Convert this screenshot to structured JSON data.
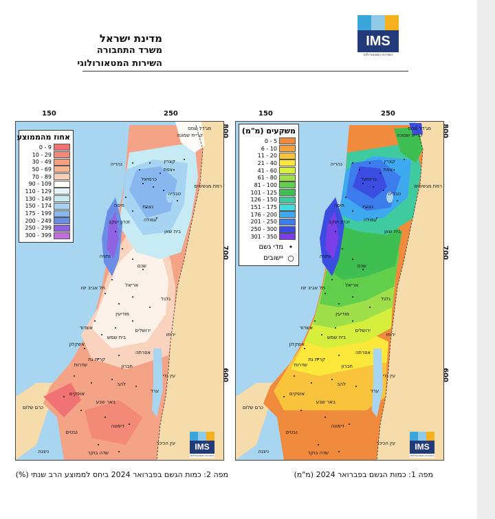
{
  "header": {
    "line1": "מדינת ישראל",
    "line2": "משרד התחבורה",
    "line3": "השירות המטאורולוגי"
  },
  "logo": {
    "text": "IMS",
    "subtitle": "השירות המטאורולוגי",
    "colors": [
      "#3aa6dc",
      "#f6b21e",
      "#233a78"
    ]
  },
  "map_axes": {
    "x_ticks": [
      "150",
      "250"
    ],
    "y_ticks": [
      "800",
      "700",
      "600"
    ]
  },
  "map1": {
    "caption": "מפה 1: כמות הגשם בפברואר 2024 (מ\"מ)",
    "legend_title": "משקעים (מ\"מ)",
    "legend": [
      {
        "label": "0 - 5",
        "color": "#f08a3c"
      },
      {
        "label": "6 - 10",
        "color": "#f5a23f"
      },
      {
        "label": "11 - 20",
        "color": "#f9c33c"
      },
      {
        "label": "21 - 40",
        "color": "#fbe83a"
      },
      {
        "label": "41 - 60",
        "color": "#d6ef3c"
      },
      {
        "label": "61 - 80",
        "color": "#9fe04a"
      },
      {
        "label": "81 - 100",
        "color": "#62cf4c"
      },
      {
        "label": "101 - 125",
        "color": "#3fbf52"
      },
      {
        "label": "126 - 150",
        "color": "#3fcaa0"
      },
      {
        "label": "151 - 175",
        "color": "#44dce0"
      },
      {
        "label": "176 - 200",
        "color": "#3fa9f0"
      },
      {
        "label": "201 - 250",
        "color": "#3d7cec"
      },
      {
        "label": "250 - 300",
        "color": "#3b4ce0"
      },
      {
        "label": "301 - 350",
        "color": "#7a3ee6"
      }
    ],
    "symbols": [
      {
        "icon": "•",
        "label": "מדי גשם"
      },
      {
        "icon": "○",
        "label": "יישובים"
      }
    ]
  },
  "map2": {
    "caption": "מפה 2: כמות הגשם בפברואר 2024  ביחס לממוצע הרב שנתי (%)",
    "legend_title": "אחוז מהממוצע",
    "legend": [
      {
        "label": "0 - 9",
        "color": "#f07272"
      },
      {
        "label": "10 - 29",
        "color": "#f38a78"
      },
      {
        "label": "30 - 49",
        "color": "#f5a07e"
      },
      {
        "label": "50 - 69",
        "color": "#f7b592"
      },
      {
        "label": "70 - 89",
        "color": "#f9cfb6"
      },
      {
        "label": "90 - 109",
        "color": "#fdfbf6"
      },
      {
        "label": "110 - 129",
        "color": "#e3f5f8"
      },
      {
        "label": "130 - 149",
        "color": "#c6ebf4"
      },
      {
        "label": "150 - 174",
        "color": "#a6d4f2"
      },
      {
        "label": "175 - 199",
        "color": "#87b7ee"
      },
      {
        "label": "200 - 249",
        "color": "#6a8ee6"
      },
      {
        "label": "250 - 299",
        "color": "#8f63e2"
      },
      {
        "label": "300 - 399",
        "color": "#c46ce0"
      }
    ]
  },
  "places": [
    "מג'דל שמס",
    "קריית שמונה",
    "נהריה",
    "קצרין",
    "צפת",
    "חיפה",
    "כרמיאל",
    "טבריה",
    "רמת מגשימים",
    "נצרת",
    "עפולה",
    "זכרון יעקב",
    "בית שאן",
    "נתניה",
    "שכם",
    "תל אביב יפו",
    "אריאל",
    "גלגל",
    "מודיעין",
    "אשדוד",
    "ירושלים",
    "בית שמש",
    "יריחו",
    "אשקלון",
    "קרית גת",
    "אפרתה",
    "חברון",
    "שדרות",
    "עין גדי",
    "להב",
    "אופקים",
    "ערד",
    "באר שבע",
    "כרם שלום",
    "דימונה",
    "נבטים",
    "ניצנה",
    "שדה בוקר",
    "עין הכיכר"
  ]
}
